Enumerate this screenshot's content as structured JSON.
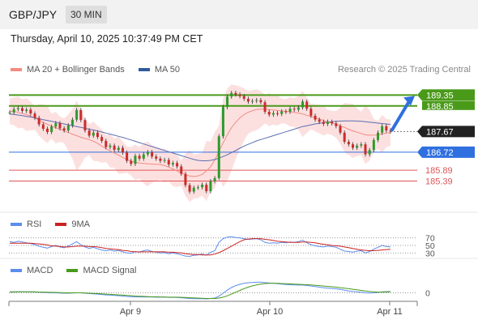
{
  "header": {
    "symbol": "GBP/JPY",
    "interval": "30 MIN",
    "datetime": "Thursday, April 10, 2025 10:37:49 PM CET"
  },
  "legend_main": [
    {
      "label": "MA 20 + Bollinger Bands",
      "color": "#f28b82"
    },
    {
      "label": "MA 50",
      "color": "#2f5a9e"
    }
  ],
  "research": "Research © 2025 Trading Central",
  "legend_rsi": [
    {
      "label": "RSI",
      "color": "#5b8def"
    },
    {
      "label": "9MA",
      "color": "#cc2222"
    }
  ],
  "legend_macd": [
    {
      "label": "MACD",
      "color": "#5b8def"
    },
    {
      "label": "MACD Signal",
      "color": "#4a9a1a"
    }
  ],
  "colors": {
    "green_level": "#4a9a1a",
    "blue_level": "#2f6fe0",
    "red_level": "#e05555",
    "current_price": "#222222",
    "candle_up": "#2d9a2d",
    "candle_down": "#cc2b2b",
    "band_fill": "#fbd5d5",
    "ma20": "#f28b82",
    "ma50": "#5b6fb0",
    "arrow": "#2f6fe0"
  },
  "chart_data": [
    {
      "type": "candlestick",
      "panel": "price",
      "y_unit": "JPY",
      "ylim": [
        184.1,
        190.0
      ],
      "x_tick_labels": [
        "Apr 9",
        "Apr 10",
        "Apr 11"
      ],
      "price_levels": [
        {
          "value": 189.35,
          "label": "189.35",
          "style": "resistance",
          "color": "#4a9a1a"
        },
        {
          "value": 188.85,
          "label": "188.85",
          "style": "resistance",
          "color": "#4a9a1a"
        },
        {
          "value": 187.67,
          "label": "187.67",
          "style": "current",
          "color": "#222222"
        },
        {
          "value": 186.72,
          "label": "186.72",
          "style": "support",
          "color": "#2f6fe0"
        },
        {
          "value": 185.89,
          "label": "185.89",
          "style": "support",
          "color": "#e05555"
        },
        {
          "value": 185.39,
          "label": "185.39",
          "style": "support",
          "color": "#e05555"
        }
      ],
      "close": [
        188.55,
        188.7,
        188.75,
        188.62,
        188.68,
        188.5,
        188.3,
        188.0,
        187.8,
        187.65,
        187.9,
        188.05,
        187.82,
        187.72,
        187.95,
        188.22,
        188.66,
        188.2,
        187.72,
        187.48,
        187.62,
        187.42,
        187.24,
        186.95,
        187.02,
        186.82,
        186.92,
        186.7,
        186.32,
        186.18,
        186.55,
        186.42,
        186.62,
        186.72,
        186.52,
        186.42,
        186.32,
        186.36,
        186.15,
        186.22,
        186.06,
        185.72,
        185.2,
        184.9,
        185.08,
        185.1,
        185.22,
        184.92,
        185.38,
        185.52,
        187.45,
        188.8,
        189.28,
        189.45,
        189.38,
        189.3,
        189.18,
        189.05,
        189.08,
        189.12,
        189.02,
        188.58,
        188.45,
        188.52,
        188.48,
        188.6,
        188.58,
        188.72,
        188.68,
        188.78,
        189.05,
        188.72,
        188.4,
        188.22,
        188.12,
        188.02,
        188.12,
        188.05,
        187.92,
        187.62,
        187.2,
        187.08,
        186.92,
        187.02,
        187.08,
        186.62,
        186.82,
        187.28,
        187.62,
        187.92,
        187.72,
        187.67
      ],
      "ma20": [
        188.6,
        188.6,
        188.55,
        188.5,
        188.45,
        188.38,
        188.3,
        188.2,
        188.1,
        188.0,
        187.92,
        187.85,
        187.78,
        187.7,
        187.62,
        187.55,
        187.48,
        187.4,
        187.35,
        187.3,
        187.22,
        187.12,
        187.0,
        186.88,
        186.78,
        186.68,
        186.58,
        186.48,
        186.38,
        186.3,
        186.25,
        186.22,
        186.2,
        186.18,
        186.17,
        186.16,
        186.15,
        186.1,
        186.03,
        185.95,
        185.85,
        185.75,
        185.68,
        185.62,
        185.6,
        185.62,
        185.7,
        185.85,
        186.05,
        186.35,
        186.75,
        187.15,
        187.52,
        187.85,
        188.1,
        188.3,
        188.45,
        188.56,
        188.63,
        188.68,
        188.7,
        188.7,
        188.68,
        188.66,
        188.64,
        188.62,
        188.6,
        188.58,
        188.55,
        188.52,
        188.48,
        188.42,
        188.36,
        188.3,
        188.24,
        188.18,
        188.12,
        188.06,
        188.0,
        187.93,
        187.86,
        187.78,
        187.7,
        187.64,
        187.58,
        187.52,
        187.5,
        187.5,
        187.52,
        187.56,
        187.6,
        187.62
      ],
      "ma50": [
        188.48,
        188.46,
        188.43,
        188.4,
        188.37,
        188.34,
        188.3,
        188.26,
        188.22,
        188.18,
        188.14,
        188.1,
        188.06,
        188.02,
        187.98,
        187.94,
        187.9,
        187.86,
        187.82,
        187.78,
        187.74,
        187.7,
        187.65,
        187.6,
        187.55,
        187.5,
        187.45,
        187.4,
        187.34,
        187.28,
        187.22,
        187.16,
        187.1,
        187.04,
        186.98,
        186.92,
        186.86,
        186.8,
        186.74,
        186.68,
        186.62,
        186.56,
        186.5,
        186.44,
        186.38,
        186.34,
        186.32,
        186.32,
        186.34,
        186.38,
        186.44,
        186.52,
        186.6,
        186.7,
        186.8,
        186.9,
        187.0,
        187.08,
        187.16,
        187.24,
        187.3,
        187.36,
        187.42,
        187.48,
        187.54,
        187.6,
        187.66,
        187.72,
        187.78,
        187.84,
        187.9,
        187.94,
        187.98,
        188.02,
        188.05,
        188.08,
        188.1,
        188.12,
        188.14,
        188.15,
        188.16,
        188.16,
        188.16,
        188.15,
        188.14,
        188.12,
        188.1,
        188.08,
        188.06,
        188.04,
        188.02,
        188.0
      ]
    },
    {
      "type": "line",
      "panel": "rsi",
      "hlines": [
        30,
        50,
        70
      ],
      "ylim": [
        20,
        80
      ],
      "series": [
        {
          "name": "RSI",
          "values": [
            60,
            58,
            61,
            59,
            57,
            55,
            52,
            48,
            45,
            43,
            47,
            50,
            46,
            44,
            48,
            54,
            60,
            52,
            46,
            42,
            45,
            41,
            38,
            36,
            38,
            35,
            37,
            33,
            30,
            29,
            34,
            32,
            36,
            38,
            34,
            32,
            30,
            31,
            28,
            30,
            28,
            25,
            22,
            21,
            24,
            25,
            27,
            24,
            32,
            36,
            58,
            68,
            72,
            73,
            71,
            70,
            68,
            66,
            67,
            68,
            65,
            58,
            56,
            57,
            56,
            58,
            57,
            59,
            58,
            60,
            64,
            57,
            52,
            49,
            47,
            46,
            48,
            47,
            45,
            40,
            35,
            34,
            32,
            35,
            36,
            30,
            34,
            40,
            45,
            50,
            47,
            46
          ]
        },
        {
          "name": "9MA",
          "values": [
            56,
            56,
            56,
            56,
            56,
            56,
            55,
            54,
            53,
            51,
            49,
            48,
            47,
            46,
            46,
            47,
            48,
            48,
            48,
            47,
            47,
            46,
            44,
            42,
            41,
            40,
            39,
            37,
            36,
            34,
            33,
            33,
            33,
            33,
            33,
            33,
            33,
            33,
            32,
            32,
            31,
            30,
            28,
            27,
            26,
            26,
            25,
            25,
            25,
            27,
            31,
            36,
            42,
            48,
            54,
            60,
            65,
            67,
            68,
            68,
            68,
            66,
            65,
            63,
            61,
            60,
            59,
            58,
            58,
            58,
            59,
            59,
            58,
            57,
            55,
            53,
            52,
            50,
            49,
            48,
            46,
            44,
            42,
            40,
            38,
            37,
            36,
            36,
            37,
            38,
            39,
            40
          ]
        }
      ]
    },
    {
      "type": "line",
      "panel": "macd",
      "hlines": [
        0
      ],
      "ylim": [
        -0.45,
        0.75
      ],
      "series": [
        {
          "name": "MACD",
          "values": [
            0.05,
            0.05,
            0.06,
            0.06,
            0.05,
            0.05,
            0.04,
            0.03,
            0.02,
            0.01,
            0.0,
            0.0,
            -0.01,
            -0.02,
            -0.02,
            -0.01,
            0.0,
            0.0,
            -0.02,
            -0.04,
            -0.05,
            -0.07,
            -0.09,
            -0.11,
            -0.12,
            -0.14,
            -0.15,
            -0.17,
            -0.19,
            -0.21,
            -0.21,
            -0.22,
            -0.22,
            -0.22,
            -0.22,
            -0.23,
            -0.23,
            -0.23,
            -0.24,
            -0.24,
            -0.25,
            -0.26,
            -0.28,
            -0.3,
            -0.31,
            -0.31,
            -0.31,
            -0.32,
            -0.3,
            -0.28,
            -0.18,
            -0.02,
            0.14,
            0.28,
            0.38,
            0.45,
            0.5,
            0.53,
            0.55,
            0.56,
            0.56,
            0.54,
            0.52,
            0.5,
            0.48,
            0.46,
            0.44,
            0.43,
            0.42,
            0.41,
            0.41,
            0.39,
            0.36,
            0.33,
            0.3,
            0.27,
            0.25,
            0.23,
            0.21,
            0.18,
            0.14,
            0.1,
            0.07,
            0.05,
            0.03,
            0.0,
            -0.01,
            0.0,
            0.02,
            0.05,
            0.06,
            0.07
          ]
        },
        {
          "name": "MACD Signal",
          "values": [
            0.04,
            0.04,
            0.05,
            0.05,
            0.05,
            0.05,
            0.05,
            0.04,
            0.04,
            0.03,
            0.02,
            0.02,
            0.01,
            0.0,
            0.0,
            0.0,
            0.0,
            0.0,
            -0.01,
            -0.02,
            -0.03,
            -0.04,
            -0.05,
            -0.07,
            -0.08,
            -0.1,
            -0.11,
            -0.12,
            -0.14,
            -0.15,
            -0.17,
            -0.18,
            -0.19,
            -0.2,
            -0.21,
            -0.21,
            -0.22,
            -0.22,
            -0.23,
            -0.23,
            -0.23,
            -0.24,
            -0.25,
            -0.26,
            -0.27,
            -0.28,
            -0.29,
            -0.3,
            -0.3,
            -0.3,
            -0.28,
            -0.23,
            -0.16,
            -0.07,
            0.03,
            0.13,
            0.22,
            0.3,
            0.37,
            0.42,
            0.46,
            0.49,
            0.5,
            0.5,
            0.5,
            0.49,
            0.48,
            0.47,
            0.46,
            0.45,
            0.44,
            0.43,
            0.42,
            0.4,
            0.38,
            0.36,
            0.34,
            0.32,
            0.3,
            0.27,
            0.25,
            0.22,
            0.19,
            0.16,
            0.13,
            0.1,
            0.07,
            0.05,
            0.04,
            0.04,
            0.04,
            0.05
          ]
        }
      ]
    }
  ]
}
